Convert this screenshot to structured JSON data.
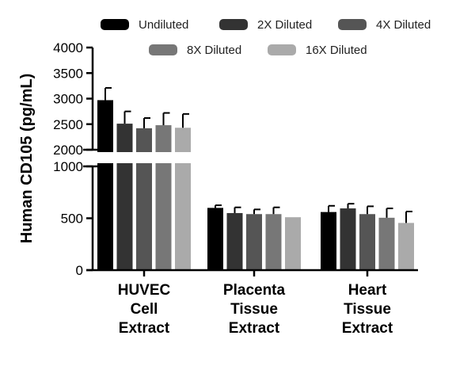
{
  "chart_data": {
    "type": "bar",
    "ylabel": "Human CD105 (pg/mL)",
    "categories": [
      [
        "HUVEC",
        "Cell",
        "Extract"
      ],
      [
        "Placenta",
        "Tissue",
        "Extract"
      ],
      [
        "Heart",
        "Tissue",
        "Extract"
      ]
    ],
    "series": [
      {
        "name": "Undiluted",
        "color": "#000000",
        "values": [
          2970,
          600,
          560
        ],
        "errors": [
          240,
          25,
          60
        ]
      },
      {
        "name": "2X Diluted",
        "color": "#333333",
        "values": [
          2510,
          550,
          595
        ],
        "errors": [
          240,
          55,
          45
        ]
      },
      {
        "name": "4X Diluted",
        "color": "#555555",
        "values": [
          2420,
          540,
          540
        ],
        "errors": [
          200,
          45,
          75
        ]
      },
      {
        "name": "8X Diluted",
        "color": "#777777",
        "values": [
          2480,
          540,
          505
        ],
        "errors": [
          240,
          65,
          90
        ]
      },
      {
        "name": "16X Diluted",
        "color": "#aaaaaa",
        "values": [
          2430,
          510,
          455
        ],
        "errors": [
          270,
          0,
          110
        ]
      }
    ],
    "y_axis": {
      "lower_range": [
        0,
        1000
      ],
      "lower_ticks": [
        "0",
        "500",
        "1000"
      ],
      "upper_range": [
        2000,
        4000
      ],
      "upper_ticks": [
        "2000",
        "2500",
        "3000",
        "3500",
        "4000"
      ],
      "break": [
        1000,
        2000
      ]
    },
    "legend_position": "top"
  }
}
